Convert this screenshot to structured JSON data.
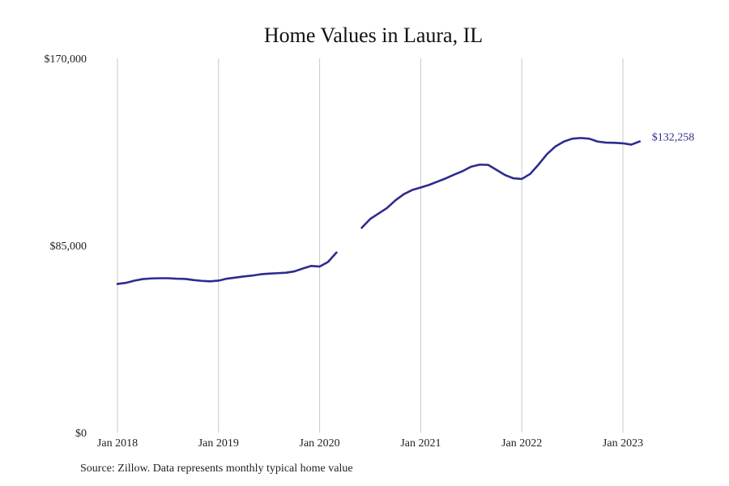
{
  "chart_data": {
    "type": "line",
    "title": "Home Values in Laura, IL",
    "xlabel": "",
    "ylabel": "",
    "ylim": [
      0,
      170000
    ],
    "xlim": [
      "2018-01",
      "2023-01"
    ],
    "grid": "vertical",
    "x_ticks": [
      {
        "value": "2018-01",
        "label": "Jan 2018"
      },
      {
        "value": "2019-01",
        "label": "Jan 2019"
      },
      {
        "value": "2020-01",
        "label": "Jan 2020"
      },
      {
        "value": "2021-01",
        "label": "Jan 2021"
      },
      {
        "value": "2022-01",
        "label": "Jan 2022"
      },
      {
        "value": "2023-01",
        "label": "Jan 2023"
      }
    ],
    "y_ticks": [
      {
        "value": 0,
        "label": "$0"
      },
      {
        "value": 85000,
        "label": "$85,000"
      },
      {
        "value": 170000,
        "label": "$170,000"
      }
    ],
    "series": [
      {
        "color": "#2e2b8f",
        "end_label": "$132,258",
        "points": [
          {
            "x": "2018-01",
            "y": 67500
          },
          {
            "x": "2018-02",
            "y": 68000
          },
          {
            "x": "2018-03",
            "y": 69000
          },
          {
            "x": "2018-04",
            "y": 69700
          },
          {
            "x": "2018-05",
            "y": 70000
          },
          {
            "x": "2018-06",
            "y": 70100
          },
          {
            "x": "2018-07",
            "y": 70100
          },
          {
            "x": "2018-08",
            "y": 69900
          },
          {
            "x": "2018-09",
            "y": 69800
          },
          {
            "x": "2018-10",
            "y": 69300
          },
          {
            "x": "2018-11",
            "y": 68900
          },
          {
            "x": "2018-12",
            "y": 68700
          },
          {
            "x": "2019-01",
            "y": 69000
          },
          {
            "x": "2019-02",
            "y": 69900
          },
          {
            "x": "2019-03",
            "y": 70400
          },
          {
            "x": "2019-04",
            "y": 70900
          },
          {
            "x": "2019-05",
            "y": 71300
          },
          {
            "x": "2019-06",
            "y": 71900
          },
          {
            "x": "2019-07",
            "y": 72200
          },
          {
            "x": "2019-08",
            "y": 72400
          },
          {
            "x": "2019-09",
            "y": 72600
          },
          {
            "x": "2019-10",
            "y": 73200
          },
          {
            "x": "2019-11",
            "y": 74500
          },
          {
            "x": "2019-12",
            "y": 75700
          },
          {
            "x": "2020-01",
            "y": 75400
          },
          {
            "x": "2020-02",
            "y": 77500
          },
          {
            "x": "2020-03",
            "y": 81800
          },
          {
            "x": "2020-04",
            "y": null
          },
          {
            "x": "2020-05",
            "y": null
          },
          {
            "x": "2020-06",
            "y": 93000
          },
          {
            "x": "2020-07",
            "y": 97000
          },
          {
            "x": "2020-08",
            "y": 99500
          },
          {
            "x": "2020-09",
            "y": 102000
          },
          {
            "x": "2020-10",
            "y": 105500
          },
          {
            "x": "2020-11",
            "y": 108300
          },
          {
            "x": "2020-12",
            "y": 110200
          },
          {
            "x": "2021-01",
            "y": 111300
          },
          {
            "x": "2021-02",
            "y": 112500
          },
          {
            "x": "2021-03",
            "y": 114000
          },
          {
            "x": "2021-04",
            "y": 115500
          },
          {
            "x": "2021-05",
            "y": 117200
          },
          {
            "x": "2021-06",
            "y": 118800
          },
          {
            "x": "2021-07",
            "y": 120800
          },
          {
            "x": "2021-08",
            "y": 121700
          },
          {
            "x": "2021-09",
            "y": 121600
          },
          {
            "x": "2021-10",
            "y": 119300
          },
          {
            "x": "2021-11",
            "y": 117000
          },
          {
            "x": "2021-12",
            "y": 115500
          },
          {
            "x": "2022-01",
            "y": 115200
          },
          {
            "x": "2022-02",
            "y": 117500
          },
          {
            "x": "2022-03",
            "y": 121800
          },
          {
            "x": "2022-04",
            "y": 126500
          },
          {
            "x": "2022-05",
            "y": 130000
          },
          {
            "x": "2022-06",
            "y": 132200
          },
          {
            "x": "2022-07",
            "y": 133500
          },
          {
            "x": "2022-08",
            "y": 133800
          },
          {
            "x": "2022-09",
            "y": 133500
          },
          {
            "x": "2022-10",
            "y": 132200
          },
          {
            "x": "2022-11",
            "y": 131700
          },
          {
            "x": "2022-12",
            "y": 131600
          },
          {
            "x": "2023-01",
            "y": 131400
          },
          {
            "x": "2023-02",
            "y": 130800
          },
          {
            "x": "2023-03",
            "y": 132258
          }
        ]
      }
    ]
  },
  "footer": {
    "source": "Source: Zillow. Data represents monthly typical home value"
  },
  "colors": {
    "grid": "#c8c8c8",
    "line": "#2e2b8f",
    "text": "#222222"
  }
}
